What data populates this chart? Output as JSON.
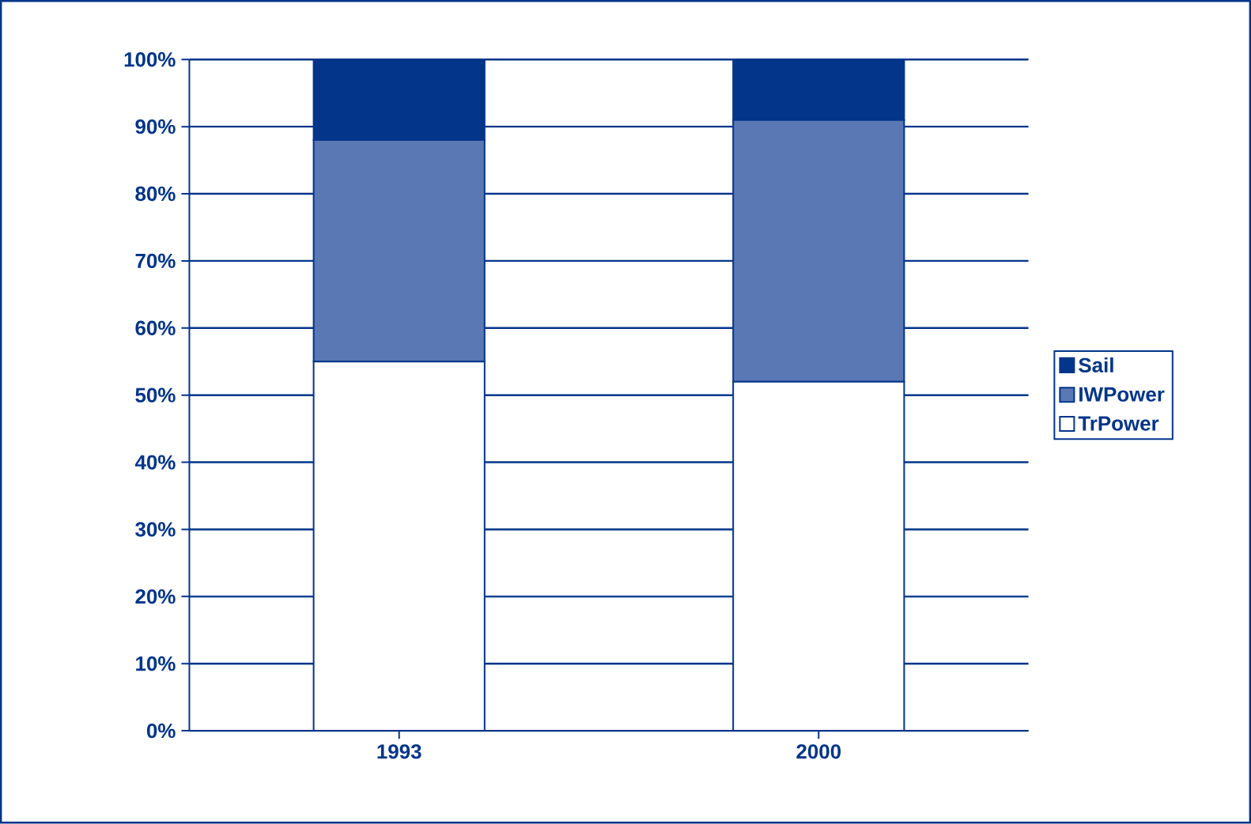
{
  "chart_data": {
    "type": "bar",
    "stacked": true,
    "categories": [
      "1993",
      "2000"
    ],
    "series": [
      {
        "name": "TrPower",
        "color": "#ffffff",
        "values": [
          55,
          52
        ]
      },
      {
        "name": "IWPower",
        "color": "#5a78b4",
        "values": [
          33,
          39
        ]
      },
      {
        "name": "Sail",
        "color": "#03358a",
        "values": [
          12,
          9
        ]
      }
    ],
    "ylim": [
      0,
      100
    ],
    "yticks": [
      {
        "value": 0,
        "label": "0%"
      },
      {
        "value": 10,
        "label": "10%"
      },
      {
        "value": 20,
        "label": "20%"
      },
      {
        "value": 30,
        "label": "30%"
      },
      {
        "value": 40,
        "label": "40%"
      },
      {
        "value": 50,
        "label": "50%"
      },
      {
        "value": 60,
        "label": "60%"
      },
      {
        "value": 70,
        "label": "70%"
      },
      {
        "value": 80,
        "label": "80%"
      },
      {
        "value": 90,
        "label": "90%"
      },
      {
        "value": 100,
        "label": "100%"
      }
    ],
    "grid": "y",
    "legend": "right"
  }
}
